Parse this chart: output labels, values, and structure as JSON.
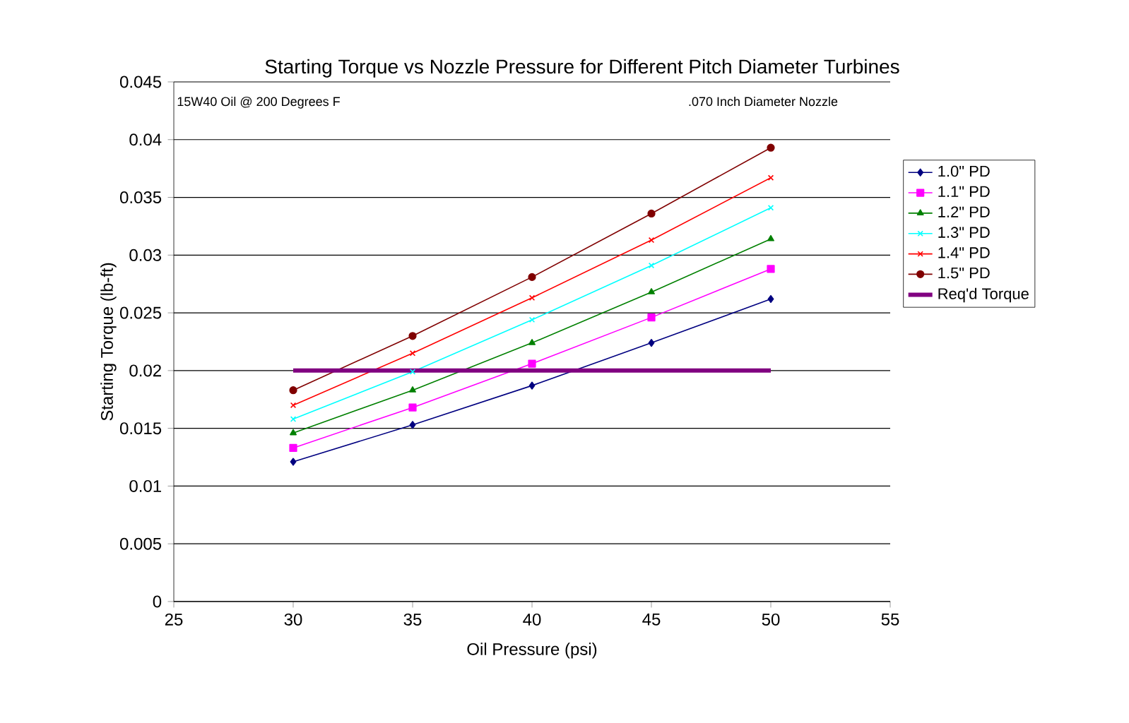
{
  "chart_data": {
    "type": "line",
    "title": "Starting Torque vs Nozzle Pressure for Different Pitch Diameter Turbines",
    "subtitle": "15W40 Oil @ 200 Degrees F",
    "annotations": [
      ".070 Inch Diameter Nozzle"
    ],
    "xlabel": "Oil Pressure (psi)",
    "ylabel": "Starting Torque (lb-ft)",
    "x": [
      30,
      35,
      40,
      45,
      50
    ],
    "series": [
      {
        "name": "1.0\" PD",
        "color": "#000080",
        "marker": "diamond",
        "values": [
          0.0121,
          0.0153,
          0.0187,
          0.0224,
          0.0262
        ]
      },
      {
        "name": "1.1\" PD",
        "color": "#ff00ff",
        "marker": "square",
        "values": [
          0.0133,
          0.0168,
          0.0206,
          0.0246,
          0.0288
        ]
      },
      {
        "name": "1.2\" PD",
        "color": "#008000",
        "marker": "triangle",
        "values": [
          0.0146,
          0.0183,
          0.0224,
          0.0268,
          0.0314
        ]
      },
      {
        "name": "1.3\" PD",
        "color": "#00ffff",
        "marker": "cross",
        "values": [
          0.0158,
          0.0199,
          0.0244,
          0.0291,
          0.0341
        ]
      },
      {
        "name": "1.4\" PD",
        "color": "#ff0000",
        "marker": "cross",
        "values": [
          0.017,
          0.0215,
          0.0263,
          0.0313,
          0.0367
        ]
      },
      {
        "name": "1.5\" PD",
        "color": "#800000",
        "marker": "circle",
        "values": [
          0.0183,
          0.023,
          0.0281,
          0.0336,
          0.0393
        ]
      },
      {
        "name": "Req'd Torque",
        "color": "#800080",
        "marker": "none",
        "x": [
          30,
          50
        ],
        "values": [
          0.02,
          0.02
        ]
      }
    ],
    "xlim": [
      25,
      55
    ],
    "xticks": [
      25,
      30,
      35,
      40,
      45,
      50,
      55
    ],
    "ylim": [
      0,
      0.045
    ],
    "yticks": [
      0,
      0.005,
      0.01,
      0.015,
      0.02,
      0.025,
      0.03,
      0.035,
      0.04,
      0.045
    ],
    "grid": "y",
    "legend": "right"
  }
}
